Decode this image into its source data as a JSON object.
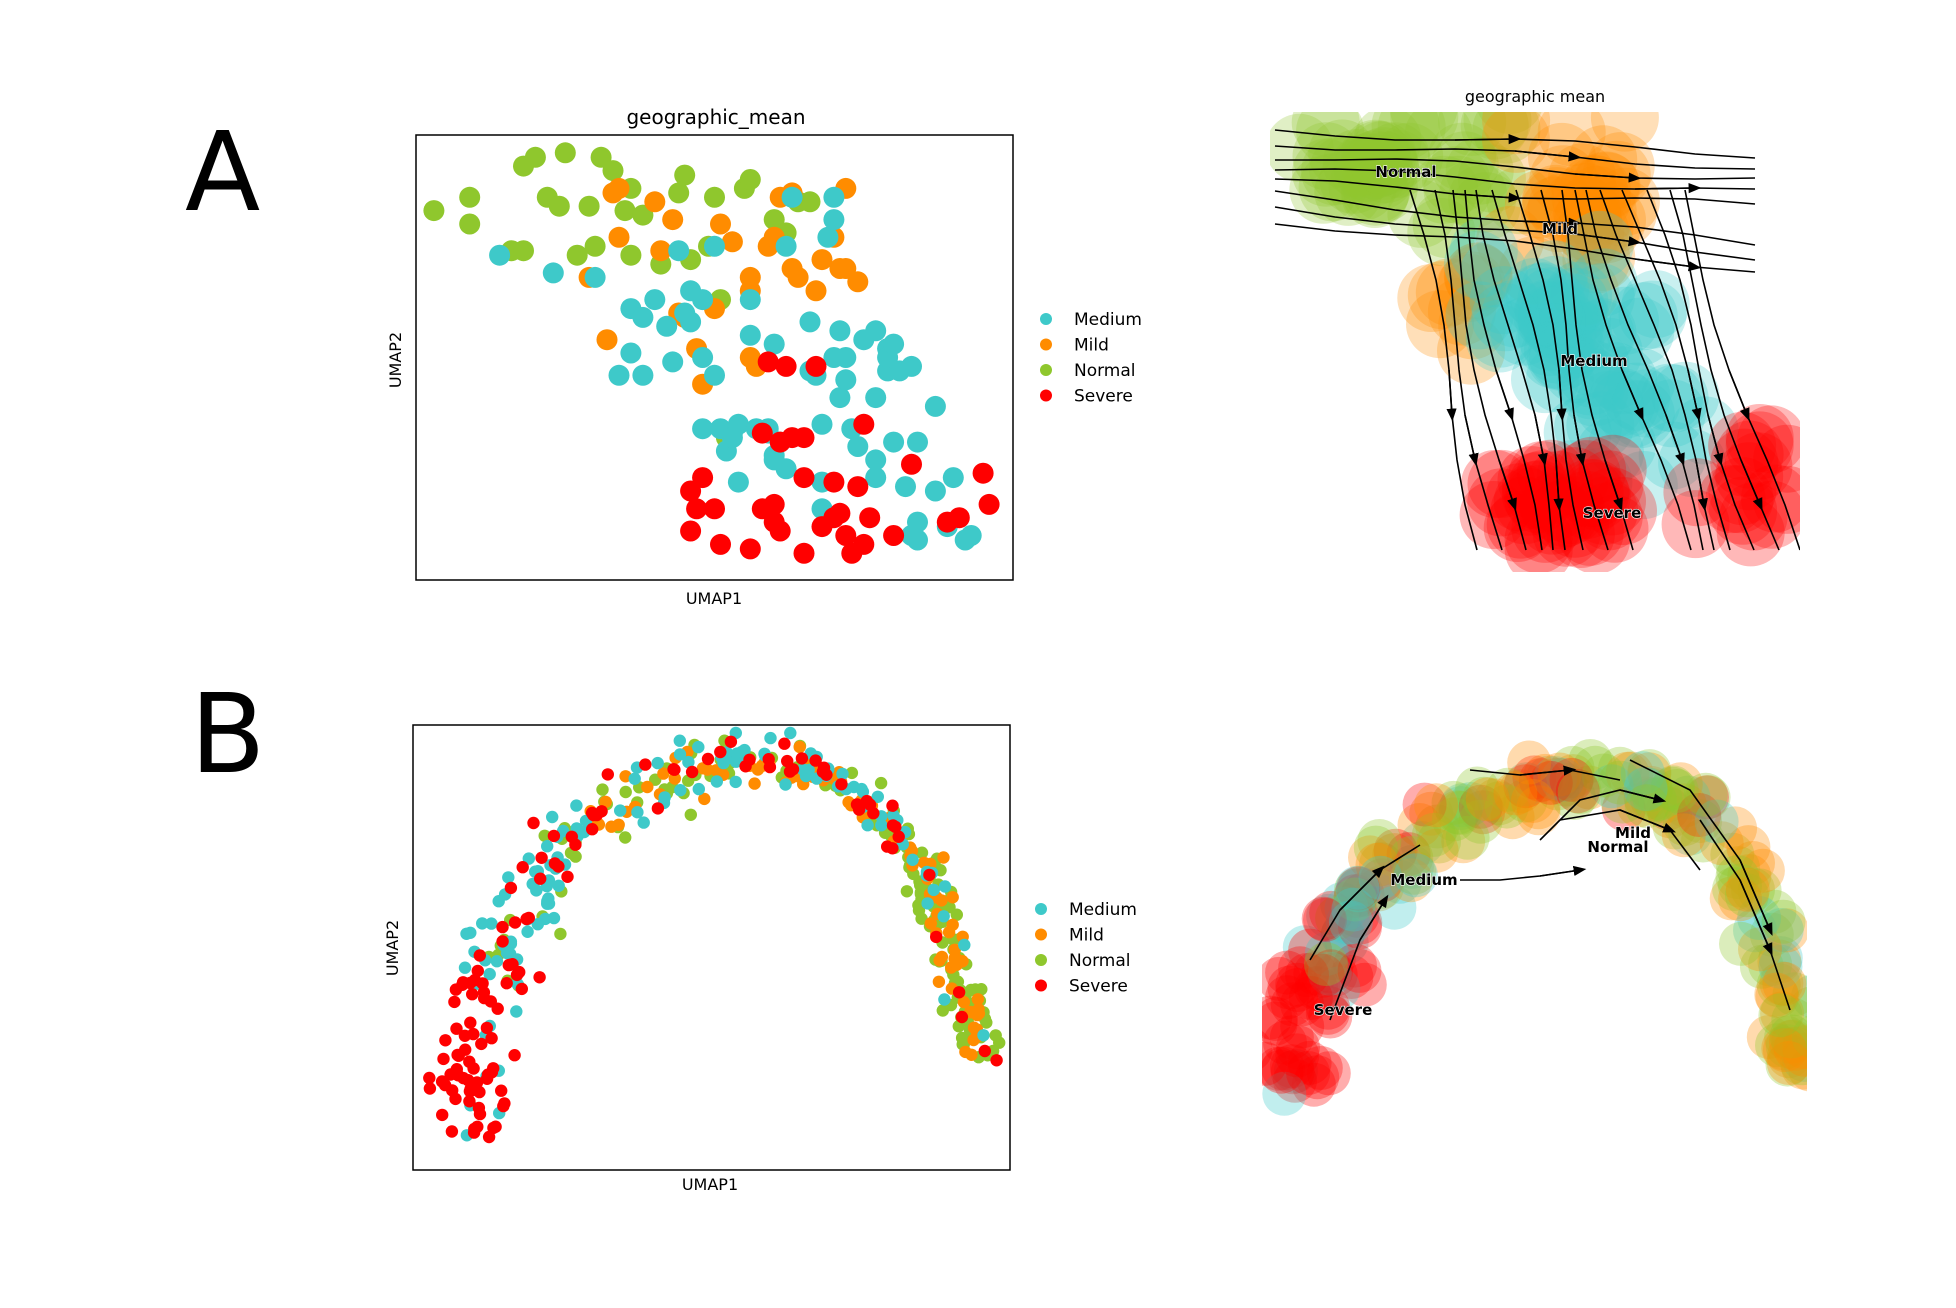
{
  "figure": {
    "panel_a_letter": "A",
    "panel_b_letter": "B",
    "legend": [
      {
        "label": "Medium",
        "color": "#3ec9c9"
      },
      {
        "label": "Mild",
        "color": "#ff8c00"
      },
      {
        "label": "Normal",
        "color": "#8fc72d"
      },
      {
        "label": "Severe",
        "color": "#ff0000"
      }
    ],
    "stream_a": {
      "title": "geographic mean",
      "labels": {
        "normal": "Normal",
        "mild": "Mild",
        "medium": "Medium",
        "severe": "Severe"
      }
    },
    "stream_b": {
      "labels": {
        "mild": "Mild",
        "normal": "Normal",
        "medium": "Medium",
        "severe": "Severe"
      }
    }
  },
  "chart_data": [
    {
      "type": "scatter",
      "title": "geographic_mean",
      "xlabel": "UMAP1",
      "ylabel": "UMAP2",
      "xlim": [
        0,
        10
      ],
      "ylim": [
        0,
        10
      ],
      "legend_position": "right",
      "series": [
        {
          "name": "Normal",
          "color": "#8fc72d",
          "points": [
            [
              0.3,
              8.3
            ],
            [
              0.9,
              8.6
            ],
            [
              0.9,
              8.0
            ],
            [
              1.6,
              7.4
            ],
            [
              1.8,
              9.3
            ],
            [
              2.0,
              9.5
            ],
            [
              2.2,
              8.6
            ],
            [
              2.4,
              8.4
            ],
            [
              2.5,
              9.6
            ],
            [
              2.7,
              7.3
            ],
            [
              2.9,
              8.4
            ],
            [
              3.1,
              9.5
            ],
            [
              3.3,
              9.2
            ],
            [
              3.5,
              8.3
            ],
            [
              3.6,
              8.8
            ],
            [
              3.8,
              8.2
            ],
            [
              3.6,
              7.3
            ],
            [
              4.1,
              7.1
            ],
            [
              4.4,
              8.7
            ],
            [
              4.9,
              7.5
            ],
            [
              4.5,
              9.1
            ],
            [
              5.0,
              8.6
            ],
            [
              5.1,
              6.3
            ],
            [
              5.2,
              3.2
            ],
            [
              5.5,
              8.8
            ],
            [
              5.6,
              9.0
            ],
            [
              6.0,
              8.1
            ],
            [
              6.2,
              7.8
            ],
            [
              6.4,
              8.5
            ],
            [
              6.6,
              8.5
            ],
            [
              4.6,
              7.2
            ],
            [
              3.0,
              7.5
            ],
            [
              1.8,
              7.4
            ]
          ]
        },
        {
          "name": "Mild",
          "color": "#ff8c00",
          "points": [
            [
              2.9,
              6.8
            ],
            [
              3.3,
              8.7
            ],
            [
              3.4,
              8.8
            ],
            [
              3.4,
              7.7
            ],
            [
              4.1,
              7.4
            ],
            [
              4.0,
              8.5
            ],
            [
              4.3,
              8.1
            ],
            [
              4.4,
              6.0
            ],
            [
              4.5,
              5.9
            ],
            [
              4.7,
              5.2
            ],
            [
              5.0,
              6.1
            ],
            [
              5.1,
              8.0
            ],
            [
              5.3,
              7.6
            ],
            [
              5.6,
              6.8
            ],
            [
              5.6,
              6.5
            ],
            [
              5.6,
              5.0
            ],
            [
              5.7,
              4.8
            ],
            [
              5.9,
              7.5
            ],
            [
              6.0,
              7.7
            ],
            [
              6.1,
              8.6
            ],
            [
              6.3,
              7.0
            ],
            [
              6.4,
              6.8
            ],
            [
              6.7,
              6.5
            ],
            [
              6.8,
              7.2
            ],
            [
              7.0,
              7.7
            ],
            [
              7.1,
              7.0
            ],
            [
              7.2,
              8.8
            ],
            [
              7.2,
              7.0
            ],
            [
              7.4,
              6.7
            ],
            [
              6.3,
              8.7
            ],
            [
              4.8,
              4.4
            ],
            [
              3.2,
              5.4
            ]
          ]
        },
        {
          "name": "Medium",
          "color": "#3ec9c9",
          "points": [
            [
              1.4,
              7.3
            ],
            [
              2.3,
              6.9
            ],
            [
              3.0,
              6.8
            ],
            [
              3.4,
              4.6
            ],
            [
              3.6,
              6.1
            ],
            [
              3.6,
              5.1
            ],
            [
              3.8,
              5.9
            ],
            [
              3.8,
              4.6
            ],
            [
              4.0,
              6.3
            ],
            [
              4.2,
              5.7
            ],
            [
              4.3,
              4.9
            ],
            [
              4.4,
              7.4
            ],
            [
              4.5,
              6.0
            ],
            [
              4.6,
              6.5
            ],
            [
              4.6,
              5.8
            ],
            [
              4.8,
              6.3
            ],
            [
              4.8,
              5.0
            ],
            [
              4.8,
              3.4
            ],
            [
              5.0,
              7.5
            ],
            [
              5.0,
              4.6
            ],
            [
              5.1,
              3.4
            ],
            [
              5.2,
              2.9
            ],
            [
              5.3,
              3.3
            ],
            [
              5.4,
              3.5
            ],
            [
              5.4,
              2.2
            ],
            [
              5.6,
              6.3
            ],
            [
              5.6,
              5.5
            ],
            [
              5.9,
              3.3
            ],
            [
              5.9,
              3.4
            ],
            [
              6.0,
              2.8
            ],
            [
              6.0,
              5.3
            ],
            [
              6.0,
              2.7
            ],
            [
              6.1,
              3.1
            ],
            [
              6.2,
              2.5
            ],
            [
              6.2,
              7.5
            ],
            [
              6.3,
              8.6
            ],
            [
              6.6,
              5.8
            ],
            [
              6.6,
              4.7
            ],
            [
              6.7,
              4.6
            ],
            [
              6.8,
              2.2
            ],
            [
              6.8,
              1.6
            ],
            [
              6.8,
              3.5
            ],
            [
              6.9,
              7.7
            ],
            [
              7.0,
              8.6
            ],
            [
              7.0,
              8.1
            ],
            [
              7.1,
              5.6
            ],
            [
              7.1,
              4.1
            ],
            [
              7.2,
              4.5
            ],
            [
              7.2,
              5.0
            ],
            [
              7.3,
              3.4
            ],
            [
              7.4,
              3.0
            ],
            [
              7.5,
              5.4
            ],
            [
              7.7,
              2.7
            ],
            [
              7.7,
              4.1
            ],
            [
              7.7,
              2.3
            ],
            [
              7.7,
              5.6
            ],
            [
              7.9,
              4.7
            ],
            [
              7.9,
              5.2
            ],
            [
              7.9,
              5.0
            ],
            [
              8.0,
              3.1
            ],
            [
              8.1,
              4.7
            ],
            [
              8.3,
              4.8
            ],
            [
              8.0,
              5.3
            ],
            [
              8.2,
              2.1
            ],
            [
              8.3,
              1.0
            ],
            [
              8.4,
              3.1
            ],
            [
              8.4,
              1.3
            ],
            [
              8.4,
              0.9
            ],
            [
              8.7,
              2.0
            ],
            [
              8.7,
              3.9
            ],
            [
              8.9,
              1.2
            ],
            [
              9.0,
              2.3
            ],
            [
              9.3,
              1.0
            ],
            [
              9.2,
              0.9
            ],
            [
              7.0,
              5.0
            ],
            [
              5.7,
              3.4
            ],
            [
              5.3,
              3.2
            ]
          ]
        },
        {
          "name": "Severe",
          "color": "#ff0000",
          "points": [
            [
              4.6,
              2.0
            ],
            [
              4.6,
              1.1
            ],
            [
              4.7,
              1.6
            ],
            [
              4.8,
              2.3
            ],
            [
              5.0,
              1.6
            ],
            [
              5.1,
              0.8
            ],
            [
              5.6,
              0.7
            ],
            [
              5.8,
              3.3
            ],
            [
              5.8,
              1.6
            ],
            [
              5.9,
              4.9
            ],
            [
              6.0,
              1.7
            ],
            [
              6.0,
              1.3
            ],
            [
              6.1,
              1.1
            ],
            [
              6.1,
              3.1
            ],
            [
              6.2,
              4.8
            ],
            [
              6.3,
              3.2
            ],
            [
              6.5,
              3.2
            ],
            [
              6.5,
              2.3
            ],
            [
              6.7,
              4.8
            ],
            [
              7.0,
              2.2
            ],
            [
              7.0,
              1.4
            ],
            [
              7.1,
              1.5
            ],
            [
              7.2,
              1.0
            ],
            [
              7.3,
              0.6
            ],
            [
              7.4,
              2.1
            ],
            [
              7.5,
              0.8
            ],
            [
              7.5,
              3.5
            ],
            [
              7.6,
              1.4
            ],
            [
              8.0,
              1.0
            ],
            [
              8.3,
              2.6
            ],
            [
              8.9,
              1.3
            ],
            [
              9.1,
              1.4
            ],
            [
              9.5,
              2.4
            ],
            [
              9.6,
              1.7
            ],
            [
              6.8,
              1.2
            ],
            [
              6.5,
              0.6
            ]
          ]
        }
      ]
    },
    {
      "type": "scatter",
      "title": "",
      "xlabel": "UMAP1",
      "ylabel": "UMAP2",
      "xlim": [
        0,
        10
      ],
      "ylim": [
        0,
        10
      ],
      "legend_position": "right",
      "series": [
        {
          "name": "Medium",
          "color": "#3ec9c9"
        },
        {
          "name": "Mild",
          "color": "#ff8c00"
        },
        {
          "name": "Normal",
          "color": "#8fc72d"
        },
        {
          "name": "Severe",
          "color": "#ff0000"
        }
      ]
    }
  ]
}
